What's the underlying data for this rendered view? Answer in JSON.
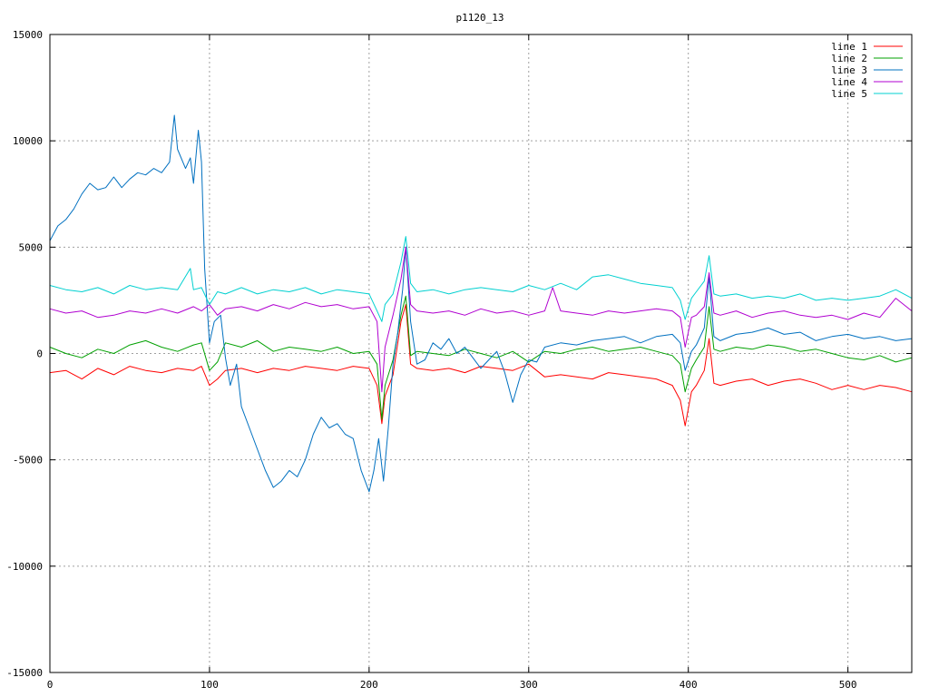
{
  "chart_data": {
    "type": "line",
    "title": "p1120_13",
    "xlabel": "",
    "ylabel": "",
    "xlim": [
      0,
      540
    ],
    "ylim": [
      -15000,
      15000
    ],
    "xticks": [
      0,
      100,
      200,
      300,
      400,
      500
    ],
    "yticks": [
      -15000,
      -10000,
      -5000,
      0,
      5000,
      10000,
      15000
    ],
    "grid": true,
    "legend_position": "top-right",
    "series": [
      {
        "name": "line 1",
        "color": "#ff0000",
        "x": [
          0,
          10,
          20,
          30,
          40,
          50,
          60,
          70,
          80,
          90,
          95,
          100,
          105,
          110,
          120,
          130,
          140,
          150,
          160,
          170,
          180,
          190,
          200,
          205,
          208,
          210,
          215,
          220,
          223,
          226,
          230,
          240,
          250,
          260,
          270,
          280,
          290,
          300,
          310,
          320,
          330,
          340,
          350,
          360,
          370,
          380,
          390,
          395,
          398,
          402,
          405,
          410,
          413,
          416,
          420,
          430,
          440,
          450,
          460,
          470,
          480,
          490,
          500,
          510,
          520,
          530,
          540
        ],
        "y": [
          -900,
          -800,
          -1200,
          -700,
          -1000,
          -600,
          -800,
          -900,
          -700,
          -800,
          -600,
          -1500,
          -1200,
          -800,
          -700,
          -900,
          -700,
          -800,
          -600,
          -700,
          -800,
          -600,
          -700,
          -1500,
          -3300,
          -2000,
          -1000,
          1500,
          2300,
          -500,
          -700,
          -800,
          -700,
          -900,
          -600,
          -700,
          -800,
          -500,
          -1100,
          -1000,
          -1100,
          -1200,
          -900,
          -1000,
          -1100,
          -1200,
          -1500,
          -2200,
          -3400,
          -1800,
          -1500,
          -800,
          700,
          -1400,
          -1500,
          -1300,
          -1200,
          -1500,
          -1300,
          -1200,
          -1400,
          -1700,
          -1500,
          -1700,
          -1500,
          -1600,
          -1800
        ]
      },
      {
        "name": "line 2",
        "color": "#00a000",
        "x": [
          0,
          10,
          20,
          30,
          40,
          50,
          60,
          70,
          80,
          90,
          95,
          100,
          105,
          110,
          120,
          130,
          140,
          150,
          160,
          170,
          180,
          190,
          200,
          205,
          208,
          210,
          215,
          220,
          223,
          226,
          230,
          240,
          250,
          260,
          270,
          280,
          290,
          300,
          310,
          320,
          330,
          340,
          350,
          360,
          370,
          380,
          390,
          395,
          398,
          402,
          405,
          410,
          413,
          416,
          420,
          430,
          440,
          450,
          460,
          470,
          480,
          490,
          500,
          510,
          520,
          530,
          540
        ],
        "y": [
          300,
          0,
          -200,
          200,
          0,
          400,
          600,
          300,
          100,
          400,
          500,
          -800,
          -400,
          500,
          300,
          600,
          100,
          300,
          200,
          100,
          300,
          0,
          100,
          -500,
          -3100,
          -1500,
          -300,
          1800,
          2700,
          -100,
          100,
          0,
          -100,
          200,
          0,
          -200,
          100,
          -400,
          100,
          0,
          200,
          300,
          100,
          200,
          300,
          100,
          -100,
          -500,
          -1800,
          -700,
          -300,
          300,
          2200,
          200,
          100,
          300,
          200,
          400,
          300,
          100,
          200,
          0,
          -200,
          -300,
          -100,
          -400,
          -200
        ]
      },
      {
        "name": "line 3",
        "color": "#0070c0",
        "x": [
          0,
          5,
          10,
          15,
          20,
          25,
          30,
          35,
          40,
          45,
          50,
          55,
          60,
          65,
          70,
          75,
          78,
          80,
          85,
          88,
          90,
          93,
          95,
          97,
          100,
          103,
          107,
          110,
          113,
          117,
          120,
          125,
          130,
          135,
          140,
          145,
          150,
          155,
          160,
          165,
          170,
          175,
          180,
          185,
          190,
          195,
          200,
          203,
          206,
          209,
          212,
          215,
          218,
          221,
          223,
          226,
          230,
          235,
          240,
          245,
          250,
          255,
          260,
          265,
          270,
          275,
          280,
          285,
          290,
          295,
          300,
          305,
          310,
          320,
          330,
          340,
          350,
          360,
          370,
          380,
          390,
          395,
          398,
          402,
          405,
          410,
          413,
          416,
          420,
          430,
          440,
          450,
          460,
          470,
          480,
          490,
          500,
          510,
          520,
          530,
          540
        ],
        "y": [
          5300,
          6000,
          6300,
          6800,
          7500,
          8000,
          7700,
          7800,
          8300,
          7800,
          8200,
          8500,
          8400,
          8700,
          8500,
          9000,
          11200,
          9600,
          8700,
          9200,
          8000,
          10500,
          9000,
          4000,
          500,
          1500,
          1800,
          -200,
          -1500,
          -500,
          -2500,
          -3500,
          -4500,
          -5500,
          -6300,
          -6000,
          -5500,
          -5800,
          -5000,
          -3800,
          -3000,
          -3500,
          -3300,
          -3800,
          -4000,
          -5500,
          -6500,
          -5500,
          -4000,
          -6000,
          -3500,
          -500,
          1000,
          3000,
          5000,
          1500,
          -500,
          -300,
          500,
          200,
          700,
          0,
          300,
          -200,
          -700,
          -300,
          100,
          -900,
          -2300,
          -1000,
          -300,
          -400,
          300,
          500,
          400,
          600,
          700,
          800,
          500,
          800,
          900,
          500,
          -800,
          100,
          400,
          1200,
          3600,
          800,
          600,
          900,
          1000,
          1200,
          900,
          1000,
          600,
          800,
          900,
          700,
          800,
          600,
          700
        ]
      },
      {
        "name": "line 4",
        "color": "#b000d0",
        "x": [
          0,
          10,
          20,
          30,
          40,
          50,
          60,
          70,
          80,
          90,
          95,
          100,
          105,
          110,
          120,
          130,
          140,
          150,
          160,
          170,
          180,
          190,
          200,
          205,
          208,
          210,
          215,
          220,
          223,
          226,
          230,
          240,
          250,
          260,
          270,
          280,
          290,
          300,
          310,
          315,
          320,
          330,
          340,
          350,
          360,
          370,
          380,
          390,
          395,
          398,
          402,
          405,
          410,
          413,
          416,
          420,
          430,
          440,
          450,
          460,
          470,
          480,
          490,
          500,
          510,
          520,
          530,
          540
        ],
        "y": [
          2100,
          1900,
          2000,
          1700,
          1800,
          2000,
          1900,
          2100,
          1900,
          2200,
          2000,
          2300,
          1800,
          2100,
          2200,
          2000,
          2300,
          2100,
          2400,
          2200,
          2300,
          2100,
          2200,
          1500,
          -1800,
          300,
          1800,
          3500,
          5000,
          2300,
          2000,
          1900,
          2000,
          1800,
          2100,
          1900,
          2000,
          1800,
          2000,
          3100,
          2000,
          1900,
          1800,
          2000,
          1900,
          2000,
          2100,
          2000,
          1700,
          300,
          1700,
          1800,
          2200,
          3800,
          1900,
          1800,
          2000,
          1700,
          1900,
          2000,
          1800,
          1700,
          1800,
          1600,
          1900,
          1700,
          2600,
          2000
        ]
      },
      {
        "name": "line 5",
        "color": "#00d0d0",
        "x": [
          0,
          10,
          20,
          30,
          40,
          50,
          60,
          70,
          80,
          88,
          90,
          95,
          100,
          105,
          110,
          120,
          130,
          140,
          150,
          160,
          170,
          180,
          190,
          200,
          205,
          208,
          210,
          215,
          220,
          223,
          226,
          230,
          240,
          250,
          260,
          270,
          280,
          290,
          300,
          310,
          320,
          330,
          340,
          350,
          360,
          370,
          380,
          390,
          395,
          398,
          402,
          405,
          410,
          413,
          416,
          420,
          430,
          440,
          450,
          460,
          470,
          480,
          490,
          500,
          510,
          520,
          530,
          540
        ],
        "y": [
          3200,
          3000,
          2900,
          3100,
          2800,
          3200,
          3000,
          3100,
          3000,
          4000,
          3000,
          3100,
          2300,
          2900,
          2800,
          3100,
          2800,
          3000,
          2900,
          3100,
          2800,
          3000,
          2900,
          2800,
          2000,
          1500,
          2300,
          2800,
          4300,
          5500,
          3300,
          2900,
          3000,
          2800,
          3000,
          3100,
          3000,
          2900,
          3200,
          3000,
          3300,
          3000,
          3600,
          3700,
          3500,
          3300,
          3200,
          3100,
          2500,
          1600,
          2600,
          2900,
          3400,
          4600,
          2800,
          2700,
          2800,
          2600,
          2700,
          2600,
          2800,
          2500,
          2600,
          2500,
          2600,
          2700,
          3000,
          2600
        ]
      }
    ]
  }
}
